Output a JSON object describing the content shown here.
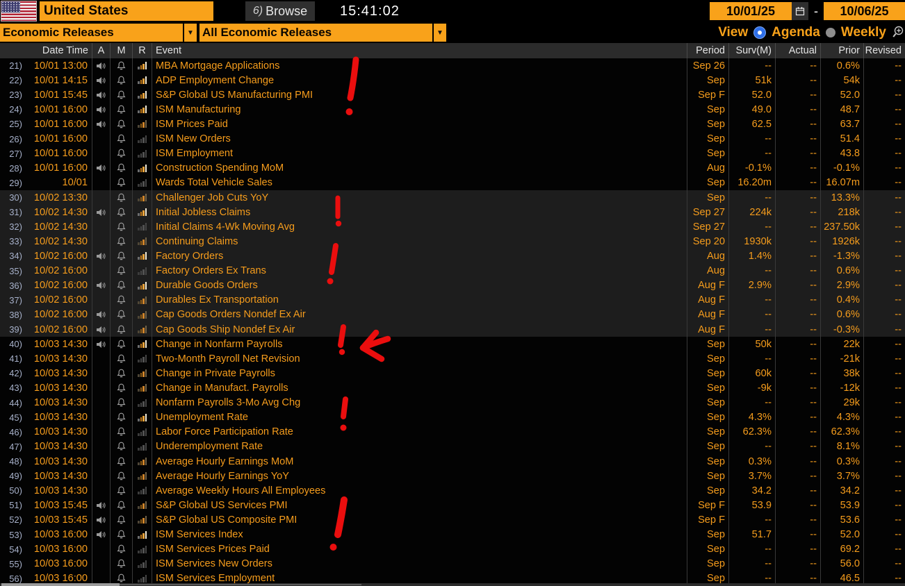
{
  "titlebar": {
    "region": "United States",
    "browse_hotkey": "6)",
    "browse_label": "Browse",
    "time": "15:41:02",
    "date_from": "10/01/25",
    "date_dash": "-",
    "date_to": "10/06/25"
  },
  "filters": {
    "primary": "Economic Releases",
    "secondary": "All Economic Releases",
    "dropdown_arrow": "▼",
    "view_label": "View",
    "agenda_label": "Agenda",
    "weekly_label": "Weekly",
    "selected_mode": "View"
  },
  "table": {
    "headers": {
      "num": "",
      "datetime": "Date Time",
      "a": "A",
      "m": "M",
      "r": "R",
      "event": "Event",
      "period": "Period",
      "surv": "Surv(M)",
      "actual": "Actual",
      "prior": "Prior",
      "revised": "Revised"
    },
    "rows": [
      {
        "num": "21",
        "datetime": "10/01 13:00",
        "speaker": true,
        "bell": true,
        "chart": "hi",
        "event": "MBA Mortgage Applications",
        "period": "Sep 26",
        "surv": "--",
        "actual": "--",
        "prior": "0.6%",
        "revised": "--",
        "band": false
      },
      {
        "num": "22",
        "datetime": "10/01 14:15",
        "speaker": true,
        "bell": true,
        "chart": "hi",
        "event": "ADP Employment Change",
        "period": "Sep",
        "surv": "51k",
        "actual": "--",
        "prior": "54k",
        "revised": "--",
        "band": false
      },
      {
        "num": "23",
        "datetime": "10/01 15:45",
        "speaker": true,
        "bell": true,
        "chart": "hi",
        "event": "S&P Global US Manufacturing PMI",
        "period": "Sep F",
        "surv": "52.0",
        "actual": "--",
        "prior": "52.0",
        "revised": "--",
        "band": false
      },
      {
        "num": "24",
        "datetime": "10/01 16:00",
        "speaker": true,
        "bell": true,
        "chart": "hi",
        "event": "ISM Manufacturing",
        "period": "Sep",
        "surv": "49.0",
        "actual": "--",
        "prior": "48.7",
        "revised": "--",
        "band": false
      },
      {
        "num": "25",
        "datetime": "10/01 16:00",
        "speaker": true,
        "bell": true,
        "chart": "med",
        "event": "ISM Prices Paid",
        "period": "Sep",
        "surv": "62.5",
        "actual": "--",
        "prior": "63.7",
        "revised": "--",
        "band": false
      },
      {
        "num": "26",
        "datetime": "10/01 16:00",
        "speaker": false,
        "bell": true,
        "chart": "lo",
        "event": "ISM New Orders",
        "period": "Sep",
        "surv": "--",
        "actual": "--",
        "prior": "51.4",
        "revised": "--",
        "band": false
      },
      {
        "num": "27",
        "datetime": "10/01 16:00",
        "speaker": false,
        "bell": true,
        "chart": "lo",
        "event": "ISM Employment",
        "period": "Sep",
        "surv": "--",
        "actual": "--",
        "prior": "43.8",
        "revised": "--",
        "band": false
      },
      {
        "num": "28",
        "datetime": "10/01 16:00",
        "speaker": true,
        "bell": true,
        "chart": "hi",
        "event": "Construction Spending MoM",
        "period": "Aug",
        "surv": "-0.1%",
        "actual": "--",
        "prior": "-0.1%",
        "revised": "--",
        "band": false
      },
      {
        "num": "29",
        "datetime": "10/01",
        "speaker": false,
        "bell": true,
        "chart": "lo",
        "event": "Wards Total Vehicle Sales",
        "period": "Sep",
        "surv": "16.20m",
        "actual": "--",
        "prior": "16.07m",
        "revised": "--",
        "band": false
      },
      {
        "num": "30",
        "datetime": "10/02 13:30",
        "speaker": false,
        "bell": true,
        "chart": "med",
        "event": "Challenger Job Cuts YoY",
        "period": "Sep",
        "surv": "--",
        "actual": "--",
        "prior": "13.3%",
        "revised": "--",
        "band": true
      },
      {
        "num": "31",
        "datetime": "10/02 14:30",
        "speaker": true,
        "bell": true,
        "chart": "hi",
        "event": "Initial Jobless Claims",
        "period": "Sep 27",
        "surv": "224k",
        "actual": "--",
        "prior": "218k",
        "revised": "--",
        "band": true
      },
      {
        "num": "32",
        "datetime": "10/02 14:30",
        "speaker": false,
        "bell": true,
        "chart": "lo",
        "event": "Initial Claims 4-Wk Moving Avg",
        "period": "Sep 27",
        "surv": "--",
        "actual": "--",
        "prior": "237.50k",
        "revised": "--",
        "band": true
      },
      {
        "num": "33",
        "datetime": "10/02 14:30",
        "speaker": false,
        "bell": true,
        "chart": "med",
        "event": "Continuing Claims",
        "period": "Sep 20",
        "surv": "1930k",
        "actual": "--",
        "prior": "1926k",
        "revised": "--",
        "band": true
      },
      {
        "num": "34",
        "datetime": "10/02 16:00",
        "speaker": true,
        "bell": true,
        "chart": "hi",
        "event": "Factory Orders",
        "period": "Aug",
        "surv": "1.4%",
        "actual": "--",
        "prior": "-1.3%",
        "revised": "--",
        "band": true
      },
      {
        "num": "35",
        "datetime": "10/02 16:00",
        "speaker": false,
        "bell": true,
        "chart": "lo",
        "event": "Factory Orders Ex Trans",
        "period": "Aug",
        "surv": "--",
        "actual": "--",
        "prior": "0.6%",
        "revised": "--",
        "band": true
      },
      {
        "num": "36",
        "datetime": "10/02 16:00",
        "speaker": true,
        "bell": true,
        "chart": "hi",
        "event": "Durable Goods Orders",
        "period": "Aug F",
        "surv": "2.9%",
        "actual": "--",
        "prior": "2.9%",
        "revised": "--",
        "band": true
      },
      {
        "num": "37",
        "datetime": "10/02 16:00",
        "speaker": false,
        "bell": true,
        "chart": "med",
        "event": "Durables Ex Transportation",
        "period": "Aug F",
        "surv": "--",
        "actual": "--",
        "prior": "0.4%",
        "revised": "--",
        "band": true
      },
      {
        "num": "38",
        "datetime": "10/02 16:00",
        "speaker": true,
        "bell": true,
        "chart": "med",
        "event": "Cap Goods Orders Nondef Ex Air",
        "period": "Aug F",
        "surv": "--",
        "actual": "--",
        "prior": "0.6%",
        "revised": "--",
        "band": true
      },
      {
        "num": "39",
        "datetime": "10/02 16:00",
        "speaker": true,
        "bell": true,
        "chart": "med",
        "event": "Cap Goods Ship Nondef Ex Air",
        "period": "Aug F",
        "surv": "--",
        "actual": "--",
        "prior": "-0.3%",
        "revised": "--",
        "band": true
      },
      {
        "num": "40",
        "datetime": "10/03 14:30",
        "speaker": true,
        "bell": true,
        "chart": "hi",
        "event": "Change in Nonfarm Payrolls",
        "period": "Sep",
        "surv": "50k",
        "actual": "--",
        "prior": "22k",
        "revised": "--",
        "band": false
      },
      {
        "num": "41",
        "datetime": "10/03 14:30",
        "speaker": false,
        "bell": true,
        "chart": "lo",
        "event": "Two-Month Payroll Net Revision",
        "period": "Sep",
        "surv": "--",
        "actual": "--",
        "prior": "-21k",
        "revised": "--",
        "band": false
      },
      {
        "num": "42",
        "datetime": "10/03 14:30",
        "speaker": false,
        "bell": true,
        "chart": "med",
        "event": "Change in Private Payrolls",
        "period": "Sep",
        "surv": "60k",
        "actual": "--",
        "prior": "38k",
        "revised": "--",
        "band": false
      },
      {
        "num": "43",
        "datetime": "10/03 14:30",
        "speaker": false,
        "bell": true,
        "chart": "med",
        "event": "Change in Manufact. Payrolls",
        "period": "Sep",
        "surv": "-9k",
        "actual": "--",
        "prior": "-12k",
        "revised": "--",
        "band": false
      },
      {
        "num": "44",
        "datetime": "10/03 14:30",
        "speaker": false,
        "bell": true,
        "chart": "lo",
        "event": "Nonfarm Payrolls 3-Mo Avg Chg",
        "period": "Sep",
        "surv": "--",
        "actual": "--",
        "prior": "29k",
        "revised": "--",
        "band": false
      },
      {
        "num": "45",
        "datetime": "10/03 14:30",
        "speaker": false,
        "bell": true,
        "chart": "hi",
        "event": "Unemployment Rate",
        "period": "Sep",
        "surv": "4.3%",
        "actual": "--",
        "prior": "4.3%",
        "revised": "--",
        "band": false
      },
      {
        "num": "46",
        "datetime": "10/03 14:30",
        "speaker": false,
        "bell": true,
        "chart": "lo",
        "event": "Labor Force Participation Rate",
        "period": "Sep",
        "surv": "62.3%",
        "actual": "--",
        "prior": "62.3%",
        "revised": "--",
        "band": false
      },
      {
        "num": "47",
        "datetime": "10/03 14:30",
        "speaker": false,
        "bell": true,
        "chart": "lo",
        "event": "Underemployment Rate",
        "period": "Sep",
        "surv": "--",
        "actual": "--",
        "prior": "8.1%",
        "revised": "--",
        "band": false
      },
      {
        "num": "48",
        "datetime": "10/03 14:30",
        "speaker": false,
        "bell": true,
        "chart": "med",
        "event": "Average Hourly Earnings MoM",
        "period": "Sep",
        "surv": "0.3%",
        "actual": "--",
        "prior": "0.3%",
        "revised": "--",
        "band": false
      },
      {
        "num": "49",
        "datetime": "10/03 14:30",
        "speaker": false,
        "bell": true,
        "chart": "med",
        "event": "Average Hourly Earnings YoY",
        "period": "Sep",
        "surv": "3.7%",
        "actual": "--",
        "prior": "3.7%",
        "revised": "--",
        "band": false
      },
      {
        "num": "50",
        "datetime": "10/03 14:30",
        "speaker": false,
        "bell": true,
        "chart": "lo",
        "event": "Average Weekly Hours All Employees",
        "period": "Sep",
        "surv": "34.2",
        "actual": "--",
        "prior": "34.2",
        "revised": "--",
        "band": false
      },
      {
        "num": "51",
        "datetime": "10/03 15:45",
        "speaker": true,
        "bell": true,
        "chart": "med",
        "event": "S&P Global US Services PMI",
        "period": "Sep F",
        "surv": "53.9",
        "actual": "--",
        "prior": "53.9",
        "revised": "--",
        "band": false
      },
      {
        "num": "52",
        "datetime": "10/03 15:45",
        "speaker": true,
        "bell": true,
        "chart": "med",
        "event": "S&P Global US Composite PMI",
        "period": "Sep F",
        "surv": "--",
        "actual": "--",
        "prior": "53.6",
        "revised": "--",
        "band": false
      },
      {
        "num": "53",
        "datetime": "10/03 16:00",
        "speaker": true,
        "bell": true,
        "chart": "hi",
        "event": "ISM Services Index",
        "period": "Sep",
        "surv": "51.7",
        "actual": "--",
        "prior": "52.0",
        "revised": "--",
        "band": false
      },
      {
        "num": "54",
        "datetime": "10/03 16:00",
        "speaker": false,
        "bell": true,
        "chart": "lo",
        "event": "ISM Services Prices Paid",
        "period": "Sep",
        "surv": "--",
        "actual": "--",
        "prior": "69.2",
        "revised": "--",
        "band": false
      },
      {
        "num": "55",
        "datetime": "10/03 16:00",
        "speaker": false,
        "bell": true,
        "chart": "lo",
        "event": "ISM Services New Orders",
        "period": "Sep",
        "surv": "--",
        "actual": "--",
        "prior": "56.0",
        "revised": "--",
        "band": false
      },
      {
        "num": "56",
        "datetime": "10/03 16:00",
        "speaker": false,
        "bell": true,
        "chart": "lo",
        "event": "ISM Services Employment",
        "period": "Sep",
        "surv": "--",
        "actual": "--",
        "prior": "46.5",
        "revised": "--",
        "band": false
      }
    ]
  },
  "annotations": {
    "color": "#ea0e0e",
    "marks": [
      {
        "type": "exclamation",
        "near_event": "S&P Global US Manufacturing PMI"
      },
      {
        "type": "exclamation",
        "near_event": "Challenger Job Cuts YoY"
      },
      {
        "type": "exclamation",
        "near_event": "Factory Orders"
      },
      {
        "type": "exclamation",
        "near_event": "Cap Goods Ship Nondef Ex Air"
      },
      {
        "type": "arrow-left",
        "points_to": "Change in Nonfarm Payrolls"
      },
      {
        "type": "exclamation",
        "near_event": "Unemployment Rate"
      },
      {
        "type": "exclamation",
        "near_event": "ISM Services Index"
      }
    ]
  },
  "colors": {
    "accent_orange": "#f9a21a",
    "text_orange": "#f59c1c",
    "row_number_blue": "#a6b0c9",
    "band_gray": "#1d1d1d",
    "radio_blue": "#2e6fe8",
    "annotation_red": "#ea0e0e"
  }
}
